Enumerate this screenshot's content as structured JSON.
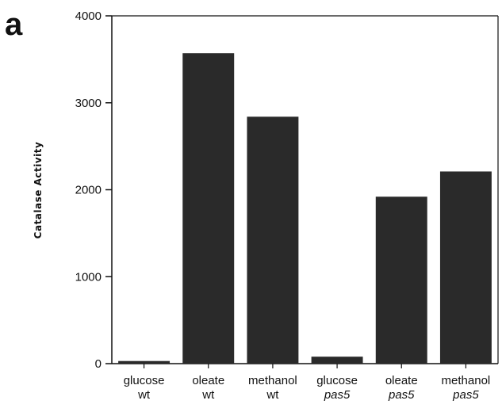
{
  "panel_label": "a",
  "chart_data": {
    "type": "bar",
    "title": "",
    "xlabel": "",
    "ylabel": "Catalase Activity",
    "ylim": [
      0,
      4000
    ],
    "yticks": [
      "0",
      "1000",
      "2000",
      "3000",
      "4000"
    ],
    "grid": false,
    "categories": [
      {
        "line1": "glucose",
        "line2": "wt"
      },
      {
        "line1": "oleate",
        "line2": "wt"
      },
      {
        "line1": "methanol",
        "line2": "wt"
      },
      {
        "line1": "glucose",
        "line2": "pas5"
      },
      {
        "line1": "oleate",
        "line2": "pas5"
      },
      {
        "line1": "methanol",
        "line2": "pas5"
      }
    ],
    "values": [
      30,
      3570,
      2840,
      80,
      1920,
      2210
    ],
    "bar_color": "#2a2a2a"
  }
}
